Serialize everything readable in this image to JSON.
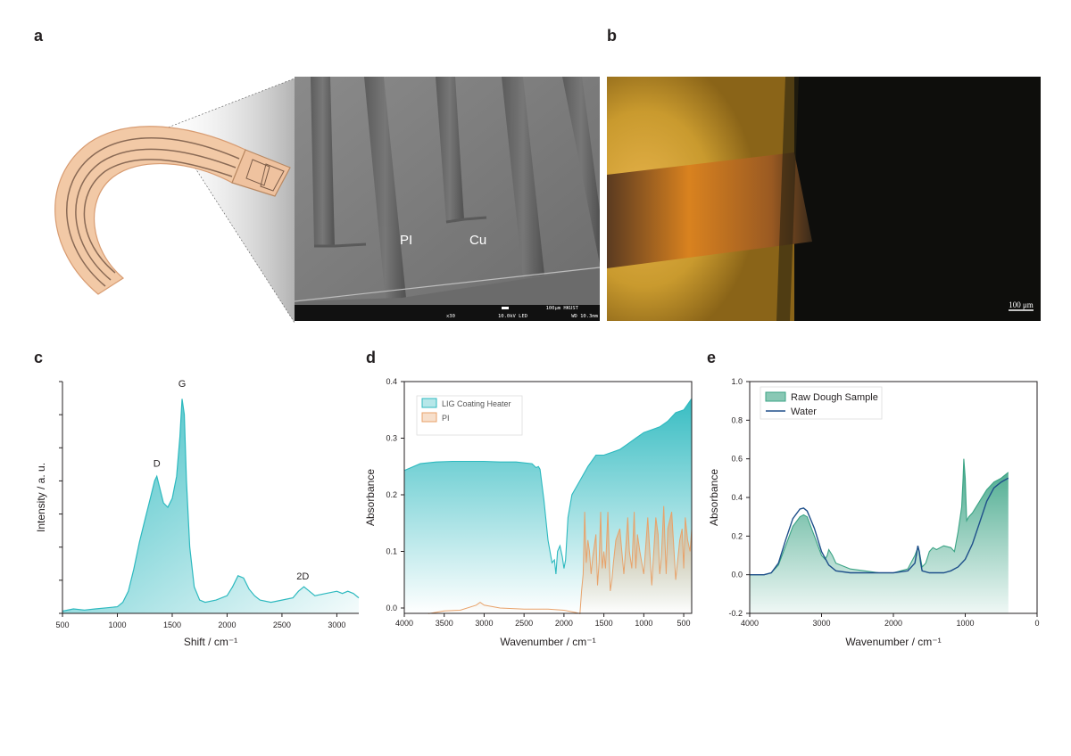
{
  "figure": {
    "panels": {
      "a": {
        "letter": "a",
        "sem": {
          "label_pi": "PI",
          "label_cu": "Cu",
          "scale_text": "100μm HKUST",
          "info_mag": "x30",
          "info_kv": "10.0kV LED",
          "info_wd": "WD 10.3mm"
        }
      },
      "b": {
        "letter": "b",
        "scale_text": "100 μm"
      },
      "c": {
        "letter": "c"
      },
      "d": {
        "letter": "d"
      },
      "e": {
        "letter": "e"
      }
    }
  },
  "colors": {
    "teal": "#2db9bf",
    "orange": "#e8a26a",
    "green": "#3aa384",
    "navy": "#1e4f8a",
    "copper": "#c89b74"
  },
  "chart_data": [
    {
      "panel": "c",
      "type": "area",
      "xlabel": "Shift / cm⁻¹",
      "ylabel": "Intensity / a. u.",
      "xlim": [
        500,
        3200
      ],
      "xticks": [
        "500",
        "1000",
        "1500",
        "2000",
        "2500",
        "3000"
      ],
      "annotations": [
        {
          "text": "D",
          "x": 1360,
          "y": 0.64
        },
        {
          "text": "G",
          "x": 1590,
          "y": 1.0
        },
        {
          "text": "2D",
          "x": 2690,
          "y": 0.13
        }
      ],
      "series": [
        {
          "x": [
            500,
            600,
            700,
            800,
            900,
            1000,
            1050,
            1100,
            1150,
            1200,
            1250,
            1300,
            1340,
            1360,
            1380,
            1420,
            1460,
            1500,
            1540,
            1570,
            1590,
            1610,
            1630,
            1660,
            1700,
            1750,
            1800,
            1900,
            2000,
            2050,
            2100,
            2150,
            2200,
            2250,
            2300,
            2400,
            2500,
            2600,
            2650,
            2700,
            2750,
            2800,
            2900,
            3000,
            3050,
            3100,
            3150,
            3200
          ],
          "values": [
            0.01,
            0.02,
            0.015,
            0.02,
            0.025,
            0.03,
            0.05,
            0.1,
            0.2,
            0.32,
            0.42,
            0.52,
            0.6,
            0.62,
            0.58,
            0.5,
            0.48,
            0.52,
            0.62,
            0.8,
            0.97,
            0.9,
            0.6,
            0.3,
            0.12,
            0.06,
            0.05,
            0.06,
            0.08,
            0.12,
            0.17,
            0.16,
            0.11,
            0.08,
            0.06,
            0.05,
            0.06,
            0.07,
            0.1,
            0.12,
            0.1,
            0.08,
            0.09,
            0.1,
            0.09,
            0.1,
            0.09,
            0.07
          ]
        }
      ]
    },
    {
      "panel": "d",
      "type": "area",
      "xlabel": "Wavenumber / cm⁻¹",
      "ylabel": "Absorbance",
      "xlim": [
        4000,
        400
      ],
      "ylim": [
        0,
        0.4
      ],
      "xticks": [
        "4000",
        "3500",
        "3000",
        "2500",
        "2000",
        "1500",
        "1000",
        "500"
      ],
      "yticks": [
        "0.0",
        "0.1",
        "0.2",
        "0.3",
        "0.4"
      ],
      "series": [
        {
          "name": "LIG Coating Heater",
          "color": "#2db9bf",
          "x": [
            4000,
            3800,
            3600,
            3400,
            3200,
            3000,
            2800,
            2600,
            2400,
            2350,
            2320,
            2300,
            2250,
            2200,
            2150,
            2120,
            2100,
            2080,
            2050,
            2020,
            2000,
            1980,
            1950,
            1900,
            1800,
            1700,
            1600,
            1500,
            1400,
            1300,
            1200,
            1100,
            1000,
            900,
            800,
            700,
            600,
            500,
            400
          ],
          "values": [
            0.243,
            0.255,
            0.258,
            0.259,
            0.259,
            0.259,
            0.258,
            0.258,
            0.255,
            0.248,
            0.25,
            0.245,
            0.19,
            0.12,
            0.08,
            0.085,
            0.06,
            0.1,
            0.11,
            0.09,
            0.07,
            0.085,
            0.16,
            0.2,
            0.225,
            0.25,
            0.27,
            0.27,
            0.275,
            0.28,
            0.29,
            0.3,
            0.31,
            0.315,
            0.32,
            0.33,
            0.345,
            0.35,
            0.37
          ]
        },
        {
          "name": "PI",
          "color": "#e8a26a",
          "x": [
            3700,
            3500,
            3300,
            3100,
            3050,
            3000,
            2800,
            2500,
            2200,
            2000,
            1850,
            1800,
            1780,
            1760,
            1740,
            1720,
            1700,
            1680,
            1660,
            1640,
            1600,
            1580,
            1560,
            1540,
            1520,
            1500,
            1480,
            1450,
            1420,
            1400,
            1380,
            1350,
            1300,
            1250,
            1220,
            1200,
            1180,
            1150,
            1120,
            1100,
            1080,
            1050,
            1000,
            950,
            900,
            880,
            850,
            820,
            800,
            780,
            750,
            720,
            700,
            650,
            600,
            550,
            520,
            500,
            480,
            450,
            420,
            400
          ],
          "values": [
            -0.01,
            -0.005,
            -0.004,
            0.005,
            0.01,
            0.005,
            0.0,
            -0.002,
            -0.002,
            -0.004,
            -0.008,
            -0.01,
            0.03,
            0.06,
            0.17,
            0.08,
            0.12,
            0.1,
            0.06,
            0.09,
            0.13,
            0.04,
            0.08,
            0.17,
            0.07,
            0.1,
            0.07,
            0.17,
            0.03,
            0.05,
            0.08,
            0.12,
            0.14,
            0.06,
            0.12,
            0.16,
            0.1,
            0.07,
            0.17,
            0.07,
            0.13,
            0.1,
            0.06,
            0.16,
            0.04,
            0.09,
            0.16,
            0.13,
            0.06,
            0.09,
            0.18,
            0.06,
            0.14,
            0.17,
            0.05,
            0.12,
            0.14,
            0.07,
            0.16,
            0.12,
            0.1,
            0.14
          ]
        }
      ]
    },
    {
      "panel": "e",
      "type": "area",
      "xlabel": "Wavenumber / cm⁻¹",
      "ylabel": "Absorbance",
      "xlim": [
        4000,
        0
      ],
      "ylim": [
        -0.2,
        1.0
      ],
      "xticks": [
        "4000",
        "3000",
        "2000",
        "1000",
        "0"
      ],
      "yticks": [
        "-0.2",
        "0.0",
        "0.2",
        "0.4",
        "0.6",
        "0.8",
        "1.0"
      ],
      "series": [
        {
          "name": "Raw Dough Sample",
          "color": "#3aa384",
          "x": [
            4000,
            3800,
            3700,
            3600,
            3500,
            3400,
            3300,
            3250,
            3200,
            3100,
            3000,
            2950,
            2920,
            2900,
            2850,
            2800,
            2600,
            2400,
            2200,
            2000,
            1800,
            1700,
            1660,
            1640,
            1600,
            1550,
            1500,
            1450,
            1400,
            1300,
            1200,
            1150,
            1100,
            1050,
            1030,
            1020,
            1000,
            980,
            950,
            900,
            800,
            700,
            600,
            500,
            400
          ],
          "values": [
            0.0,
            0.0,
            0.01,
            0.05,
            0.15,
            0.25,
            0.3,
            0.31,
            0.3,
            0.2,
            0.1,
            0.08,
            0.1,
            0.13,
            0.1,
            0.06,
            0.03,
            0.02,
            0.01,
            0.01,
            0.03,
            0.1,
            0.14,
            0.12,
            0.04,
            0.06,
            0.12,
            0.14,
            0.13,
            0.15,
            0.14,
            0.12,
            0.22,
            0.35,
            0.5,
            0.6,
            0.5,
            0.28,
            0.3,
            0.32,
            0.38,
            0.44,
            0.48,
            0.5,
            0.53
          ]
        },
        {
          "name": "Water",
          "color": "#1e4f8a",
          "x": [
            4000,
            3800,
            3700,
            3600,
            3500,
            3400,
            3300,
            3250,
            3200,
            3100,
            3000,
            2900,
            2800,
            2600,
            2400,
            2200,
            2000,
            1800,
            1700,
            1660,
            1640,
            1620,
            1600,
            1500,
            1400,
            1300,
            1200,
            1100,
            1000,
            900,
            800,
            700,
            600,
            500,
            400
          ],
          "values": [
            0.0,
            0.0,
            0.01,
            0.06,
            0.18,
            0.29,
            0.34,
            0.345,
            0.33,
            0.24,
            0.12,
            0.05,
            0.02,
            0.01,
            0.01,
            0.01,
            0.01,
            0.02,
            0.06,
            0.15,
            0.12,
            0.06,
            0.02,
            0.01,
            0.01,
            0.01,
            0.02,
            0.04,
            0.08,
            0.16,
            0.27,
            0.38,
            0.45,
            0.48,
            0.5
          ]
        }
      ]
    }
  ]
}
